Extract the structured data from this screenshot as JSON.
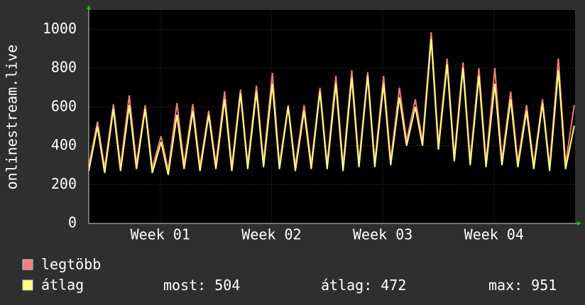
{
  "chart_data": {
    "type": "line",
    "y_label": "onlinestream.live",
    "x": [
      0,
      0.55,
      1,
      1.55,
      2,
      2.55,
      3,
      3.55,
      4,
      4.55,
      5,
      5.55,
      6,
      6.55,
      7,
      7.55,
      8,
      8.55,
      9,
      9.55,
      10,
      10.55,
      11,
      11.55,
      12,
      12.55,
      13,
      13.55,
      14,
      14.55,
      15,
      15.55,
      16,
      16.55,
      17,
      17.55,
      18,
      18.55,
      19,
      19.55,
      20,
      20.55,
      21,
      21.55,
      22,
      22.55,
      23,
      23.55,
      24,
      24.55,
      25,
      25.55,
      26,
      26.55,
      27,
      27.55,
      28,
      28.55,
      29,
      29.55,
      30,
      30.55
    ],
    "xlim": [
      0,
      30.6
    ],
    "xticks": [
      {
        "value": 4.5,
        "label": "Week 01"
      },
      {
        "value": 11.5,
        "label": "Week 02"
      },
      {
        "value": 18.5,
        "label": "Week 03"
      },
      {
        "value": 25.5,
        "label": "Week 04"
      }
    ],
    "ylim": [
      0,
      1100
    ],
    "yticks": [
      0,
      200,
      400,
      600,
      800,
      1000
    ],
    "grid": true,
    "series": [
      {
        "name": "legtöbb",
        "color": "#f47c7c",
        "values": [
          295,
          525,
          285,
          615,
          295,
          660,
          305,
          610,
          285,
          450,
          275,
          620,
          305,
          615,
          295,
          580,
          305,
          680,
          295,
          690,
          305,
          710,
          315,
          775,
          305,
          610,
          295,
          610,
          305,
          700,
          305,
          760,
          295,
          790,
          315,
          780,
          315,
          760,
          325,
          700,
          425,
          640,
          425,
          985,
          405,
          850,
          345,
          830,
          325,
          800,
          315,
          800,
          325,
          680,
          315,
          610,
          305,
          640,
          295,
          850,
          305,
          610
        ]
      },
      {
        "name": "átlag",
        "color": "#ffff7a",
        "values": [
          270,
          500,
          260,
          590,
          270,
          610,
          280,
          590,
          260,
          420,
          250,
          560,
          280,
          580,
          270,
          560,
          280,
          640,
          270,
          670,
          280,
          680,
          290,
          720,
          280,
          600,
          270,
          580,
          280,
          680,
          280,
          720,
          270,
          750,
          290,
          760,
          290,
          720,
          300,
          650,
          400,
          600,
          400,
          951,
          380,
          820,
          320,
          800,
          300,
          760,
          290,
          720,
          300,
          640,
          290,
          580,
          280,
          620,
          270,
          790,
          280,
          504
        ]
      }
    ],
    "stats": [
      {
        "label": "most:",
        "value": 504
      },
      {
        "label": "átlag:",
        "value": 472
      },
      {
        "label": "max:",
        "value": 951
      }
    ]
  }
}
